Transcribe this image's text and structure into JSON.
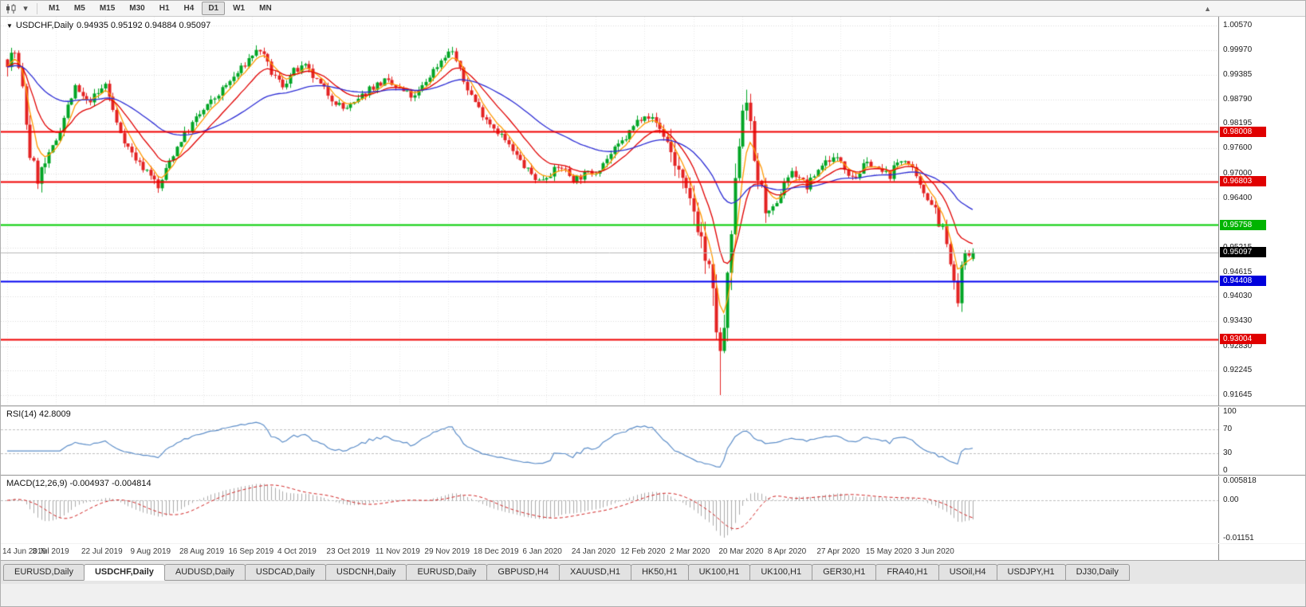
{
  "icons": {
    "collapse": "▼",
    "caret_down": "▾",
    "scroll_up": "▲"
  },
  "toolbar": {
    "timeframes": [
      "M1",
      "M5",
      "M15",
      "M30",
      "H1",
      "H4",
      "D1",
      "W1",
      "MN"
    ],
    "active_timeframe": "D1"
  },
  "chart_header": {
    "title": "USDCHF,Daily",
    "ohlc": "0.94935 0.95192 0.94884 0.95097"
  },
  "price_axis": {
    "ticks": [
      {
        "label": "1.00570",
        "price": 1.0057
      },
      {
        "label": "0.99970",
        "price": 0.9997
      },
      {
        "label": "0.99385",
        "price": 0.99385
      },
      {
        "label": "0.98790",
        "price": 0.9879
      },
      {
        "label": "0.98195",
        "price": 0.98195
      },
      {
        "label": "0.97600",
        "price": 0.976
      },
      {
        "label": "0.97000",
        "price": 0.97
      },
      {
        "label": "0.96400",
        "price": 0.964
      },
      {
        "label": "0.95215",
        "price": 0.95215
      },
      {
        "label": "0.94615",
        "price": 0.94615
      },
      {
        "label": "0.94030",
        "price": 0.9403
      },
      {
        "label": "0.93430",
        "price": 0.9343
      },
      {
        "label": "0.92830",
        "price": 0.9283
      },
      {
        "label": "0.92245",
        "price": 0.92245
      },
      {
        "label": "0.91645",
        "price": 0.91645
      }
    ],
    "badges": [
      {
        "label": "0.98008",
        "price": 0.98008,
        "bg": "#e00000"
      },
      {
        "label": "0.96803",
        "price": 0.96803,
        "bg": "#e00000"
      },
      {
        "label": "0.95758",
        "price": 0.95758,
        "bg": "#00b400"
      },
      {
        "label": "0.94408",
        "price": 0.94408,
        "bg": "#0000dc"
      },
      {
        "label": "0.93004",
        "price": 0.93004,
        "bg": "#e00000"
      }
    ],
    "current_badge": {
      "label": "0.95097",
      "price": 0.95097,
      "bg": "#000000"
    }
  },
  "indicators": {
    "rsi": {
      "label": "RSI(14) 42.8009",
      "levels": [
        {
          "label": "100",
          "value": 100
        },
        {
          "label": "70",
          "value": 70
        },
        {
          "label": "30",
          "value": 30
        },
        {
          "label": "0",
          "value": 0
        }
      ]
    },
    "macd": {
      "label": "MACD(12,26,9) -0.004937 -0.004814",
      "levels": [
        {
          "label": "0.005818",
          "value": 0.005818
        },
        {
          "label": "0.00",
          "value": 0
        },
        {
          "label": "-0.01151",
          "value": -0.01151
        }
      ]
    }
  },
  "x_axis": {
    "labels": [
      {
        "label": "14 Jun 2019",
        "index": 0
      },
      {
        "label": "3 Jul 2019",
        "index": 13
      },
      {
        "label": "22 Jul 2019",
        "index": 26
      },
      {
        "label": "9 Aug 2019",
        "index": 39
      },
      {
        "label": "28 Aug 2019",
        "index": 52
      },
      {
        "label": "16 Sep 2019",
        "index": 65
      },
      {
        "label": "4 Oct 2019",
        "index": 78
      },
      {
        "label": "23 Oct 2019",
        "index": 91
      },
      {
        "label": "11 Nov 2019",
        "index": 104
      },
      {
        "label": "29 Nov 2019",
        "index": 117
      },
      {
        "label": "18 Dec 2019",
        "index": 130
      },
      {
        "label": "6 Jan 2020",
        "index": 143
      },
      {
        "label": "24 Jan 2020",
        "index": 156
      },
      {
        "label": "12 Feb 2020",
        "index": 169
      },
      {
        "label": "2 Mar 2020",
        "index": 182
      },
      {
        "label": "20 Mar 2020",
        "index": 195
      },
      {
        "label": "8 Apr 2020",
        "index": 208
      },
      {
        "label": "27 Apr 2020",
        "index": 221
      },
      {
        "label": "15 May 2020",
        "index": 234
      },
      {
        "label": "3 Jun 2020",
        "index": 247
      }
    ]
  },
  "tabs": [
    {
      "label": "EURUSD,Daily",
      "active": false
    },
    {
      "label": "USDCHF,Daily",
      "active": true
    },
    {
      "label": "AUDUSD,Daily",
      "active": false
    },
    {
      "label": "USDCAD,Daily",
      "active": false
    },
    {
      "label": "USDCNH,Daily",
      "active": false
    },
    {
      "label": "EURUSD,Daily",
      "active": false
    },
    {
      "label": "GBPUSD,H4",
      "active": false
    },
    {
      "label": "XAUUSD,H1",
      "active": false
    },
    {
      "label": "HK50,H1",
      "active": false
    },
    {
      "label": "UK100,H1",
      "active": false
    },
    {
      "label": "UK100,H1",
      "active": false
    },
    {
      "label": "GER30,H1",
      "active": false
    },
    {
      "label": "FRA40,H1",
      "active": false
    },
    {
      "label": "USOil,H4",
      "active": false
    },
    {
      "label": "USDJPY,H1",
      "active": false
    },
    {
      "label": "DJ30,Daily",
      "active": false
    }
  ],
  "chart_data": {
    "type": "candlestick",
    "symbol": "USDCHF",
    "timeframe": "Daily",
    "bars": 257,
    "price_range": {
      "top": 1.0078,
      "bottom": 0.914
    },
    "last_ohlc": {
      "open": 0.94935,
      "high": 0.95192,
      "low": 0.94884,
      "close": 0.95097
    },
    "current_price": 0.95097,
    "anchors": [
      [
        0,
        0.9975
      ],
      [
        2,
        0.9992
      ],
      [
        4,
        0.99
      ],
      [
        6,
        0.9745
      ],
      [
        8,
        0.9688
      ],
      [
        10,
        0.9722
      ],
      [
        13,
        0.9782
      ],
      [
        16,
        0.9862
      ],
      [
        18,
        0.9905
      ],
      [
        21,
        0.9872
      ],
      [
        24,
        0.9892
      ],
      [
        26,
        0.9916
      ],
      [
        29,
        0.982
      ],
      [
        32,
        0.9762
      ],
      [
        35,
        0.9722
      ],
      [
        38,
        0.97
      ],
      [
        40,
        0.9662
      ],
      [
        43,
        0.973
      ],
      [
        46,
        0.9782
      ],
      [
        50,
        0.9832
      ],
      [
        54,
        0.9872
      ],
      [
        58,
        0.9912
      ],
      [
        62,
        0.9952
      ],
      [
        65,
        0.9988
      ],
      [
        67,
        0.9999
      ],
      [
        70,
        0.9942
      ],
      [
        73,
        0.9912
      ],
      [
        76,
        0.9946
      ],
      [
        79,
        0.9956
      ],
      [
        82,
        0.9922
      ],
      [
        86,
        0.9882
      ],
      [
        89,
        0.9856
      ],
      [
        92,
        0.9866
      ],
      [
        96,
        0.9906
      ],
      [
        100,
        0.9922
      ],
      [
        104,
        0.9902
      ],
      [
        108,
        0.9882
      ],
      [
        112,
        0.9936
      ],
      [
        116,
        0.9986
      ],
      [
        118,
        0.9996
      ],
      [
        121,
        0.9922
      ],
      [
        125,
        0.9856
      ],
      [
        128,
        0.9822
      ],
      [
        131,
        0.9792
      ],
      [
        134,
        0.9752
      ],
      [
        138,
        0.9706
      ],
      [
        141,
        0.9682
      ],
      [
        144,
        0.9702
      ],
      [
        147,
        0.9716
      ],
      [
        150,
        0.9686
      ],
      [
        153,
        0.9696
      ],
      [
        156,
        0.9706
      ],
      [
        160,
        0.9746
      ],
      [
        164,
        0.9786
      ],
      [
        167,
        0.9826
      ],
      [
        169,
        0.9846
      ],
      [
        172,
        0.9822
      ],
      [
        175,
        0.9776
      ],
      [
        178,
        0.9702
      ],
      [
        180,
        0.9642
      ],
      [
        182,
        0.9612
      ],
      [
        184,
        0.9542
      ],
      [
        186,
        0.9452
      ],
      [
        188,
        0.9332
      ],
      [
        189,
        0.9245
      ],
      [
        190,
        0.933
      ],
      [
        191,
        0.942
      ],
      [
        192,
        0.9552
      ],
      [
        193,
        0.9652
      ],
      [
        194,
        0.9782
      ],
      [
        195,
        0.9862
      ],
      [
        196,
        0.9892
      ],
      [
        197,
        0.9802
      ],
      [
        198,
        0.9732
      ],
      [
        200,
        0.9652
      ],
      [
        202,
        0.9602
      ],
      [
        204,
        0.9622
      ],
      [
        206,
        0.9682
      ],
      [
        208,
        0.9702
      ],
      [
        210,
        0.9692
      ],
      [
        212,
        0.9666
      ],
      [
        214,
        0.9696
      ],
      [
        216,
        0.9722
      ],
      [
        218,
        0.9736
      ],
      [
        221,
        0.9732
      ],
      [
        223,
        0.9702
      ],
      [
        225,
        0.9692
      ],
      [
        227,
        0.9716
      ],
      [
        229,
        0.9726
      ],
      [
        231,
        0.9706
      ],
      [
        234,
        0.9696
      ],
      [
        236,
        0.9726
      ],
      [
        238,
        0.9736
      ],
      [
        240,
        0.9706
      ],
      [
        242,
        0.9666
      ],
      [
        244,
        0.9642
      ],
      [
        246,
        0.9616
      ],
      [
        248,
        0.9562
      ],
      [
        250,
        0.9482
      ],
      [
        251,
        0.9422
      ],
      [
        252,
        0.9388
      ],
      [
        253,
        0.9462
      ],
      [
        254,
        0.9506
      ],
      [
        255,
        0.9496
      ],
      [
        256,
        0.951
      ]
    ],
    "base_volatility": 0.0021,
    "volatility_zones": [
      {
        "from": 0,
        "to": 10,
        "vol": 0.0042
      },
      {
        "from": 176,
        "to": 183,
        "vol": 0.006
      },
      {
        "from": 184,
        "to": 193,
        "vol": 0.0095
      },
      {
        "from": 194,
        "to": 201,
        "vol": 0.006
      },
      {
        "from": 246,
        "to": 253,
        "vol": 0.005
      }
    ],
    "overrides": [
      {
        "i": 189,
        "l": 0.9165
      },
      {
        "i": 196,
        "h": 0.9902
      },
      {
        "i": 252,
        "l": 0.9378
      }
    ],
    "hlines": [
      {
        "price": 0.98008,
        "color": "#f00000",
        "width": 2
      },
      {
        "price": 0.96803,
        "color": "#f00000",
        "width": 2
      },
      {
        "price": 0.95758,
        "color": "#00cc00",
        "width": 2
      },
      {
        "price": 0.94408,
        "color": "#0000f0",
        "width": 2
      },
      {
        "price": 0.93004,
        "color": "#f00000",
        "width": 2
      }
    ],
    "moving_averages": [
      {
        "period": 5,
        "color": "#ff9900"
      },
      {
        "period": 13,
        "color": "#e00000"
      },
      {
        "period": 40,
        "color": "#2b2bd4"
      }
    ],
    "rsi": {
      "period": 14,
      "current": 42.8009,
      "color": "#5c8dc8",
      "level_high": 70,
      "level_low": 30
    },
    "macd": {
      "fast": 12,
      "slow": 26,
      "signal_period": 9,
      "current_main": -0.004937,
      "current_signal": -0.004814,
      "range_max": 0.005818,
      "range_min": -0.01151,
      "bar_color": "#ababab",
      "signal_color": "#d02020"
    },
    "colors": {
      "up": "#00a524",
      "down": "#e32222",
      "grid": "#dcdcdc",
      "vgrid": "#e8e8e8",
      "current_line": "#b8b8b8"
    }
  }
}
